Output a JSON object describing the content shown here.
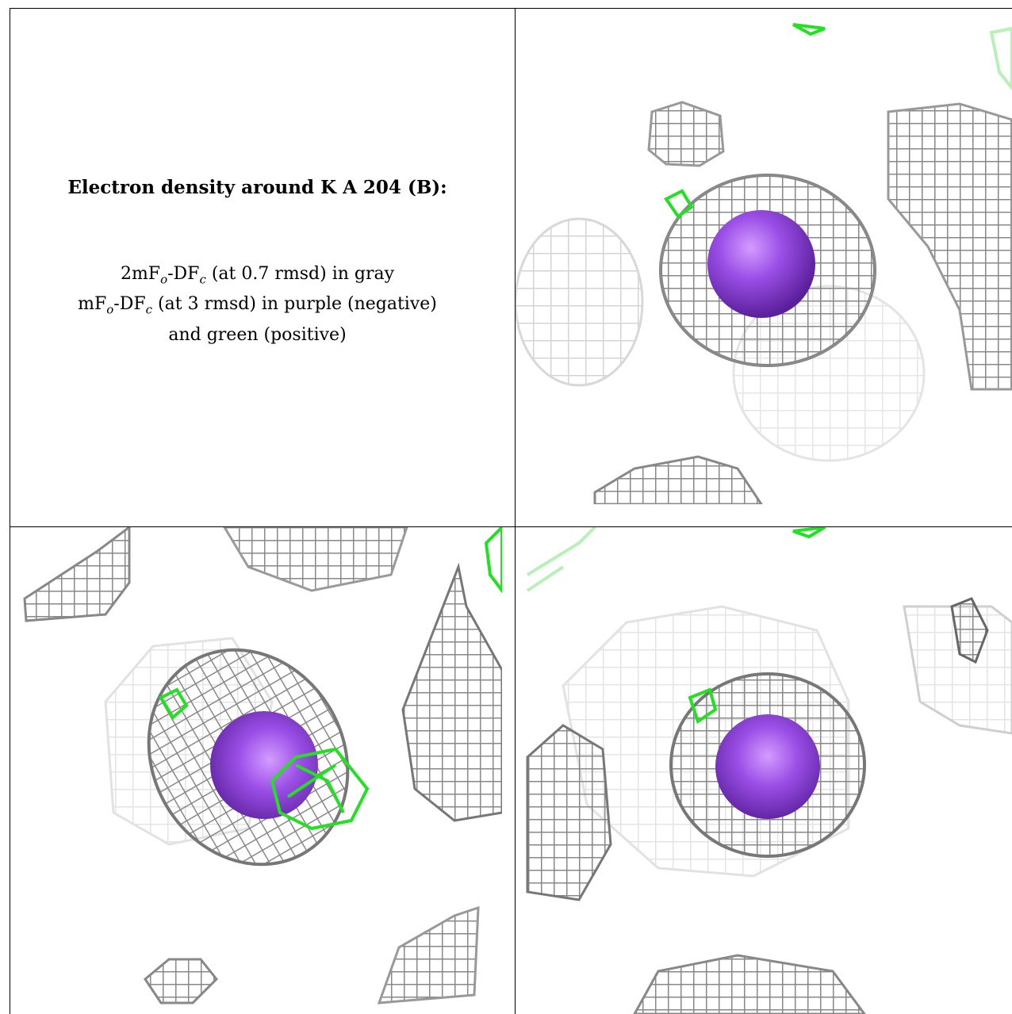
{
  "caption": {
    "title": "Electron density around K A 204 (B):",
    "line1": {
      "pre": "2mF",
      "sub1": "o",
      "mid": "-DF",
      "sub2": "c",
      "post": " (at 0.7 rmsd) in gray"
    },
    "line2": {
      "pre": "mF",
      "sub1": "o",
      "mid": "-DF",
      "sub2": "c",
      "post": " (at 3 rmsd) in purple (negative)"
    },
    "line3": "and green (positive)"
  },
  "colors": {
    "mesh_dark": "#8a8a8a",
    "mesh_light": "#d2d2d2",
    "mesh_faint": "#e8e8e8",
    "positive": "#22e022",
    "atom": "#8a3fd6"
  }
}
